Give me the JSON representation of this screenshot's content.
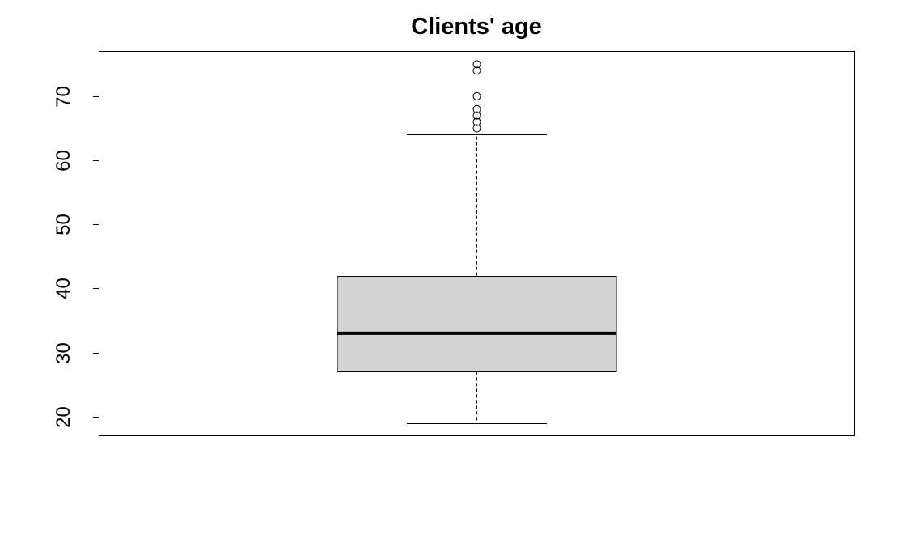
{
  "chart_data": {
    "type": "boxplot",
    "title": "Clients' age",
    "xlabel": "",
    "ylabel": "",
    "ylim": [
      17,
      77
    ],
    "yticks": [
      20,
      30,
      40,
      50,
      60,
      70
    ],
    "box": {
      "whisker_low": 19,
      "q1": 27,
      "median": 33,
      "q3": 42,
      "whisker_high": 64,
      "outliers": [
        65,
        66,
        67,
        68,
        70,
        74,
        75
      ]
    },
    "colors": {
      "box_fill": "#d3d3d3",
      "stroke": "#000000",
      "background": "#ffffff"
    }
  }
}
